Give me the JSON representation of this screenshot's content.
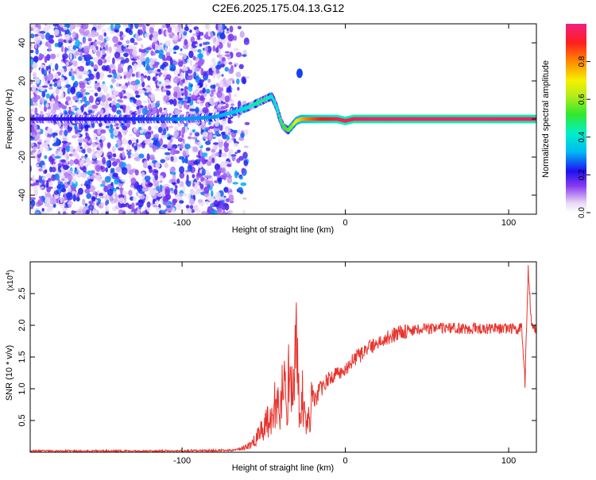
{
  "title": "C2E6.2025.175.04.13.G12",
  "chart_data": [
    {
      "type": "heatmap",
      "xlabel": "Height of straight line (km)",
      "ylabel": "Frequency (Hz)",
      "xlim": [
        -193,
        117
      ],
      "ylim": [
        -50,
        50
      ],
      "x_ticks": [
        -100,
        0,
        100
      ],
      "x_tick_labels": [
        "-100",
        "0",
        "100"
      ],
      "y_ticks": [
        -40,
        -20,
        0,
        20,
        40
      ],
      "y_tick_labels": [
        "-40",
        "-20",
        "0",
        "20",
        "40"
      ],
      "grid": false,
      "colorbar": {
        "label": "Normalized spectral amplitude",
        "range": [
          0,
          1
        ],
        "ticks": [
          0,
          0.2,
          0.4,
          0.6,
          0.8
        ],
        "tick_labels": [
          "0.0",
          "0.2",
          "0.4",
          "0.6",
          "0.8"
        ]
      },
      "ridge": {
        "x": [
          -193,
          -150,
          -120,
          -100,
          -80,
          -67,
          -60,
          -55,
          -50,
          -45,
          -42,
          -40,
          -38,
          -35,
          -32,
          -30,
          -27,
          -24,
          -20,
          -15,
          -10,
          -5,
          0,
          5,
          10,
          20,
          50,
          80,
          100,
          110,
          117
        ],
        "y": [
          0,
          0,
          0,
          0,
          1,
          4,
          6,
          8,
          10,
          12,
          6,
          0,
          -4,
          -6,
          -3,
          -1,
          0,
          0,
          0,
          0,
          0,
          0,
          -1,
          0,
          0,
          0,
          0,
          0,
          0,
          0,
          0
        ],
        "amplitude": [
          0.2,
          0.22,
          0.25,
          0.3,
          0.3,
          0.35,
          0.4,
          0.45,
          0.45,
          0.4,
          0.4,
          0.45,
          0.5,
          0.55,
          0.6,
          0.7,
          0.75,
          0.8,
          0.85,
          0.9,
          0.9,
          0.95,
          0.95,
          0.95,
          0.97,
          0.98,
          0.98,
          0.98,
          0.97,
          0.97,
          0.97
        ]
      },
      "noise": {
        "x_range": [
          -193,
          -60
        ],
        "y_range": [
          -50,
          50
        ],
        "amplitude_range": [
          0,
          0.3
        ]
      },
      "isolated_feature": {
        "x": -28,
        "y": 24,
        "amplitude": 0.25
      }
    },
    {
      "type": "line",
      "xlabel": "Height of straight line (km)",
      "ylabel": "SNR (10 * v/v)",
      "multiplier_label": "(x10",
      "multiplier_exponent": "4",
      "multiplier_close": ")",
      "xlim": [
        -193,
        117
      ],
      "ylim": [
        0,
        3
      ],
      "x_ticks": [
        -100,
        0,
        100
      ],
      "x_tick_labels": [
        "-100",
        "0",
        "100"
      ],
      "y_ticks": [
        0.5,
        1.0,
        1.5,
        2.0,
        2.5
      ],
      "y_tick_labels": [
        "0.5",
        "1.0",
        "1.5",
        "2.0",
        "2.5"
      ],
      "grid": false,
      "series": [
        {
          "color": "#e8332c",
          "x": [
            -193,
            -150,
            -100,
            -70,
            -60,
            -55,
            -50,
            -45,
            -42,
            -40,
            -38,
            -36,
            -34,
            -32,
            -30,
            -28,
            -26,
            -24,
            -22,
            -20,
            -18,
            -16,
            -14,
            -12,
            -10,
            -5,
            0,
            5,
            10,
            15,
            20,
            25,
            30,
            35,
            40,
            45,
            50,
            60,
            70,
            80,
            90,
            100,
            105,
            108,
            110,
            112,
            114,
            117
          ],
          "y": [
            0.02,
            0.02,
            0.02,
            0.03,
            0.08,
            0.2,
            0.4,
            0.6,
            0.8,
            0.5,
            1.2,
            0.6,
            1.5,
            0.8,
            2.0,
            0.4,
            0.9,
            0.3,
            0.6,
            0.9,
            0.8,
            1.0,
            1.0,
            1.1,
            1.15,
            1.25,
            1.3,
            1.45,
            1.55,
            1.65,
            1.72,
            1.8,
            1.85,
            1.9,
            1.92,
            1.94,
            1.95,
            1.95,
            1.95,
            1.95,
            1.95,
            1.95,
            1.92,
            2.0,
            1.1,
            2.9,
            2.0,
            1.95
          ]
        }
      ]
    }
  ]
}
